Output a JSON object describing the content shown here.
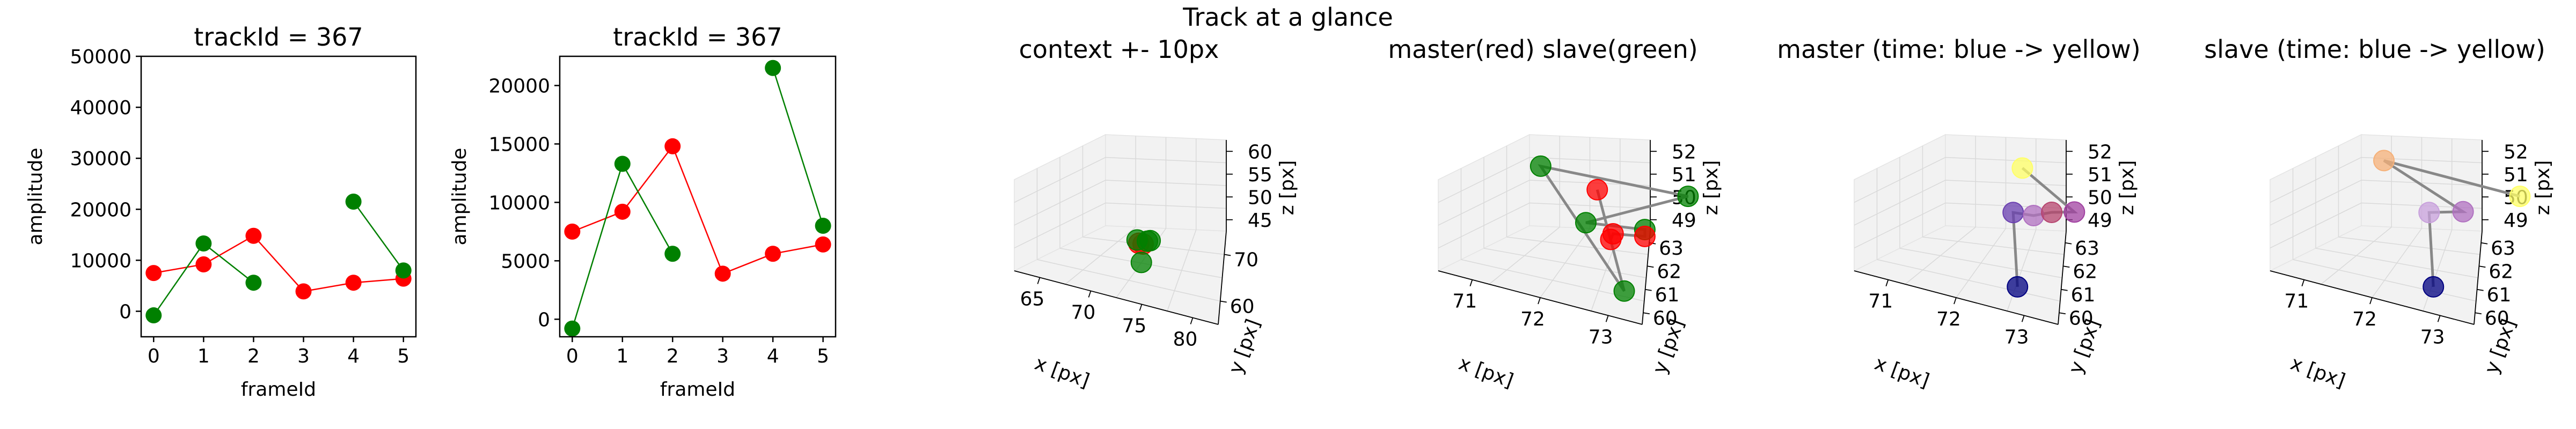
{
  "figure": {
    "suptitle": "Track at a glance"
  },
  "chart_data": [
    {
      "type": "line",
      "title": "trackId = 367",
      "xlabel": "frameId",
      "ylabel": "amplitude",
      "xlim": [
        -0.25,
        5.25
      ],
      "ylim": [
        -5000,
        50000
      ],
      "xticks": [
        0,
        1,
        2,
        3,
        4,
        5
      ],
      "yticks": [
        0,
        10000,
        20000,
        30000,
        40000,
        50000
      ],
      "grid": false,
      "colors": {
        "master": "#ff0000",
        "slave": "#008000"
      },
      "series": [
        {
          "x": [
            0,
            1,
            2,
            3,
            4,
            5
          ],
          "y": [
            7500,
            9200,
            14800,
            3900,
            5600,
            6400
          ],
          "segments": [
            [
              0,
              5
            ]
          ],
          "color": "#ff0000"
        },
        {
          "x": [
            0,
            1,
            2,
            4,
            5
          ],
          "y": [
            -800,
            13300,
            5600,
            21500,
            8000
          ],
          "segments": [
            [
              0,
              2
            ],
            [
              3,
              4
            ]
          ],
          "color": "#008000"
        }
      ]
    },
    {
      "type": "line",
      "title": "trackId = 367",
      "xlabel": "frameId",
      "ylabel": "amplitude",
      "xlim": [
        -0.25,
        5.25
      ],
      "ylim": [
        -1500,
        22500
      ],
      "xticks": [
        0,
        1,
        2,
        3,
        4,
        5
      ],
      "yticks": [
        0,
        5000,
        10000,
        15000,
        20000
      ],
      "grid": false,
      "colors": {
        "master": "#ff0000",
        "slave": "#008000"
      },
      "series": [
        {
          "x": [
            0,
            1,
            2,
            3,
            4,
            5
          ],
          "y": [
            7500,
            9200,
            14800,
            3900,
            5600,
            6400
          ],
          "segments": [
            [
              0,
              5
            ]
          ],
          "color": "#ff0000"
        },
        {
          "x": [
            0,
            1,
            2,
            4,
            5
          ],
          "y": [
            -800,
            13300,
            5600,
            21500,
            8000
          ],
          "segments": [
            [
              0,
              1
            ],
            [
              1,
              2
            ],
            [
              3,
              4
            ]
          ],
          "color": "#008000"
        }
      ]
    },
    {
      "type": "scatter",
      "title": "context +- 10px",
      "xlabel": "x [px]",
      "ylabel": "y [px]",
      "zlabel": "z [px]",
      "xticks": [
        "65",
        "70",
        "75",
        "80"
      ],
      "yticks": [
        "60",
        "70"
      ],
      "zticks": [
        "45",
        "50",
        "55",
        "60"
      ],
      "colors": [
        "#ff0000",
        "#008000"
      ],
      "points": [
        {
          "x": 72.0,
          "y": 62.0,
          "z": 50.5,
          "color": "#ff0000"
        },
        {
          "x": 71.8,
          "y": 61.5,
          "z": 50.8,
          "color": "#ff0000"
        },
        {
          "x": 72.2,
          "y": 62.5,
          "z": 51.0,
          "color": "#008000"
        },
        {
          "x": 71.5,
          "y": 61.8,
          "z": 51.2,
          "color": "#008000"
        },
        {
          "x": 72.6,
          "y": 62.2,
          "z": 51.5,
          "color": "#008000"
        },
        {
          "x": 72.5,
          "y": 60.5,
          "z": 47.5,
          "color": "#008000"
        }
      ]
    },
    {
      "type": "scatter",
      "title": "master(red) slave(green)",
      "xlabel": "x [px]",
      "ylabel": "y [px]",
      "zlabel": "z [px]",
      "xticks": [
        "71",
        "72",
        "73"
      ],
      "yticks": [
        "60",
        "61",
        "62",
        "63"
      ],
      "zticks": [
        "49",
        "50",
        "51",
        "52"
      ],
      "colors": [
        "#ff0000",
        "#008000",
        "#808080"
      ],
      "points": [
        {
          "x": 72.0,
          "y": 62.0,
          "z": 52.0,
          "color": "#ff0000"
        },
        {
          "x": 72.9,
          "y": 60.5,
          "z": 49.0,
          "color": "#008000"
        },
        {
          "x": 71.0,
          "y": 62.5,
          "z": 52.0,
          "color": "#008000"
        },
        {
          "x": 73.0,
          "y": 63.0,
          "z": 52.0,
          "color": "#008000"
        },
        {
          "x": 72.0,
          "y": 61.5,
          "z": 50.8,
          "color": "#008000"
        },
        {
          "x": 72.7,
          "y": 62.0,
          "z": 50.8,
          "color": "#008000"
        },
        {
          "x": 72.7,
          "y": 62.0,
          "z": 50.5,
          "color": "#ff0000"
        },
        {
          "x": 72.3,
          "y": 61.8,
          "z": 50.4,
          "color": "#ff0000"
        },
        {
          "x": 72.3,
          "y": 61.7,
          "z": 50.2,
          "color": "#ff0000"
        }
      ]
    },
    {
      "type": "scatter",
      "title": "master (time: blue -> yellow)",
      "xlabel": "x [px]",
      "ylabel": "y [px]",
      "zlabel": "z [px]",
      "xticks": [
        "71",
        "72",
        "73"
      ],
      "yticks": [
        "60",
        "61",
        "62",
        "63"
      ],
      "zticks": [
        "49",
        "50",
        "51",
        "52"
      ],
      "colors": [
        "#00007f",
        "#ffff66",
        "#808080"
      ],
      "points": [
        {
          "x": 72.6,
          "y": 60.4,
          "z": 49.0,
          "color": "#000080"
        },
        {
          "x": 72.0,
          "y": 62.0,
          "z": 51.0,
          "color": "#6a3fb0"
        },
        {
          "x": 72.3,
          "y": 62.0,
          "z": 51.1,
          "color": "#b070c0"
        },
        {
          "x": 72.5,
          "y": 62.2,
          "z": 51.3,
          "color": "#b6446e"
        },
        {
          "x": 72.8,
          "y": 62.3,
          "z": 51.5,
          "color": "#a040a0"
        },
        {
          "x": 71.8,
          "y": 63.0,
          "z": 52.3,
          "color": "#ffff66"
        }
      ]
    },
    {
      "type": "scatter",
      "title": "slave (time: blue -> yellow)",
      "xlabel": "x [px]",
      "ylabel": "y [px]",
      "zlabel": "z [px]",
      "xticks": [
        "71",
        "72",
        "73"
      ],
      "yticks": [
        "60",
        "61",
        "62",
        "63"
      ],
      "zticks": [
        "49",
        "50",
        "51",
        "52"
      ],
      "colors": [
        "#00007f",
        "#ffff66",
        "#808080"
      ],
      "points": [
        {
          "x": 72.6,
          "y": 60.4,
          "z": 49.0,
          "color": "#000080"
        },
        {
          "x": 72.0,
          "y": 62.0,
          "z": 51.0,
          "color": "#c8a0dc"
        },
        {
          "x": 72.4,
          "y": 62.3,
          "z": 51.2,
          "color": "#b070c0"
        },
        {
          "x": 71.0,
          "y": 63.0,
          "z": 52.0,
          "color": "#f5b078"
        },
        {
          "x": 73.0,
          "y": 63.0,
          "z": 52.0,
          "color": "#ffff66"
        }
      ]
    }
  ]
}
